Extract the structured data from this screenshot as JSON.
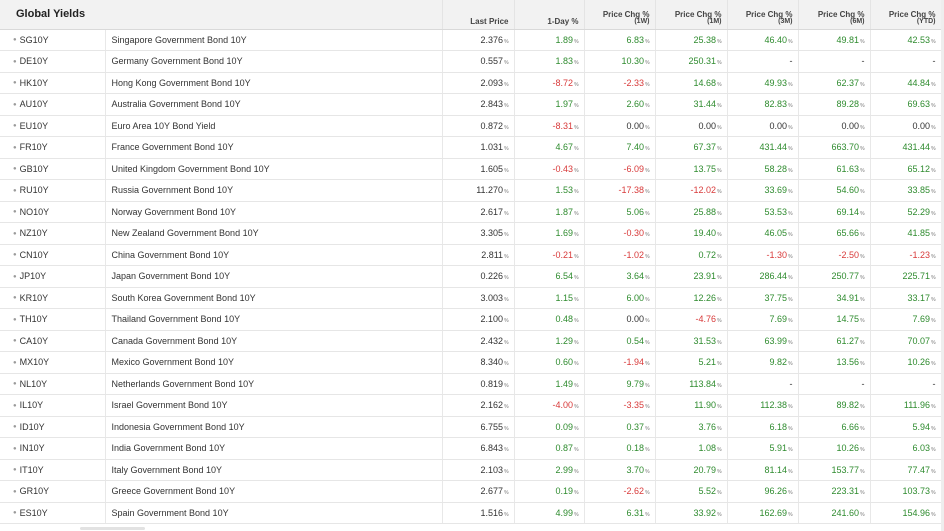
{
  "table": {
    "title": "Global Yields",
    "columns": [
      {
        "label": "Last Price",
        "sub": ""
      },
      {
        "label": "1-Day %",
        "sub": ""
      },
      {
        "label": "Price Chg %",
        "sub": "(1W)"
      },
      {
        "label": "Price Chg %",
        "sub": "(1M)"
      },
      {
        "label": "Price Chg %",
        "sub": "(3M)"
      },
      {
        "label": "Price Chg %",
        "sub": "(6M)"
      },
      {
        "label": "Price Chg %",
        "sub": "(YTD)"
      }
    ],
    "pct_suffix": "%",
    "rows": [
      {
        "symbol": "SG10Y",
        "name": "Singapore Government Bond 10Y",
        "values": [
          "2.376",
          "1.89",
          "6.83",
          "25.38",
          "46.40",
          "49.81",
          "42.53"
        ],
        "signs": [
          "n",
          "p",
          "p",
          "p",
          "p",
          "p",
          "p"
        ]
      },
      {
        "symbol": "DE10Y",
        "name": "Germany Government Bond 10Y",
        "values": [
          "0.557",
          "1.83",
          "10.30",
          "250.31",
          "-",
          "-",
          "-"
        ],
        "signs": [
          "n",
          "p",
          "p",
          "p",
          "n",
          "n",
          "n"
        ]
      },
      {
        "symbol": "HK10Y",
        "name": "Hong Kong Government Bond 10Y",
        "values": [
          "2.093",
          "-8.72",
          "-2.33",
          "14.68",
          "49.93",
          "62.37",
          "44.84"
        ],
        "signs": [
          "n",
          "m",
          "m",
          "p",
          "p",
          "p",
          "p"
        ]
      },
      {
        "symbol": "AU10Y",
        "name": "Australia Government Bond 10Y",
        "values": [
          "2.843",
          "1.97",
          "2.60",
          "31.44",
          "82.83",
          "89.28",
          "69.63"
        ],
        "signs": [
          "n",
          "p",
          "p",
          "p",
          "p",
          "p",
          "p"
        ]
      },
      {
        "symbol": "EU10Y",
        "name": "Euro Area 10Y Bond Yield",
        "values": [
          "0.872",
          "-8.31",
          "0.00",
          "0.00",
          "0.00",
          "0.00",
          "0.00"
        ],
        "signs": [
          "n",
          "m",
          "n",
          "n",
          "n",
          "n",
          "n"
        ]
      },
      {
        "symbol": "FR10Y",
        "name": "France Government Bond 10Y",
        "values": [
          "1.031",
          "4.67",
          "7.40",
          "67.37",
          "431.44",
          "663.70",
          "431.44"
        ],
        "signs": [
          "n",
          "p",
          "p",
          "p",
          "p",
          "p",
          "p"
        ]
      },
      {
        "symbol": "GB10Y",
        "name": "United Kingdom Government Bond 10Y",
        "values": [
          "1.605",
          "-0.43",
          "-6.09",
          "13.75",
          "58.28",
          "61.63",
          "65.12"
        ],
        "signs": [
          "n",
          "m",
          "m",
          "p",
          "p",
          "p",
          "p"
        ]
      },
      {
        "symbol": "RU10Y",
        "name": "Russia Government Bond 10Y",
        "values": [
          "11.270",
          "1.53",
          "-17.38",
          "-12.02",
          "33.69",
          "54.60",
          "33.85"
        ],
        "signs": [
          "n",
          "p",
          "m",
          "m",
          "p",
          "p",
          "p"
        ]
      },
      {
        "symbol": "NO10Y",
        "name": "Norway Government Bond 10Y",
        "values": [
          "2.617",
          "1.87",
          "5.06",
          "25.88",
          "53.53",
          "69.14",
          "52.29"
        ],
        "signs": [
          "n",
          "p",
          "p",
          "p",
          "p",
          "p",
          "p"
        ]
      },
      {
        "symbol": "NZ10Y",
        "name": "New Zealand Government Bond 10Y",
        "values": [
          "3.305",
          "1.69",
          "-0.30",
          "19.40",
          "46.05",
          "65.66",
          "41.85"
        ],
        "signs": [
          "n",
          "p",
          "m",
          "p",
          "p",
          "p",
          "p"
        ]
      },
      {
        "symbol": "CN10Y",
        "name": "China Government Bond 10Y",
        "values": [
          "2.811",
          "-0.21",
          "-1.02",
          "0.72",
          "-1.30",
          "-2.50",
          "-1.23"
        ],
        "signs": [
          "n",
          "m",
          "m",
          "p",
          "m",
          "m",
          "m"
        ]
      },
      {
        "symbol": "JP10Y",
        "name": "Japan Government Bond 10Y",
        "values": [
          "0.226",
          "6.54",
          "3.64",
          "23.91",
          "286.44",
          "250.77",
          "225.71"
        ],
        "signs": [
          "n",
          "p",
          "p",
          "p",
          "p",
          "p",
          "p"
        ]
      },
      {
        "symbol": "KR10Y",
        "name": "South Korea Government Bond 10Y",
        "values": [
          "3.003",
          "1.15",
          "6.00",
          "12.26",
          "37.75",
          "34.91",
          "33.17"
        ],
        "signs": [
          "n",
          "p",
          "p",
          "p",
          "p",
          "p",
          "p"
        ]
      },
      {
        "symbol": "TH10Y",
        "name": "Thailand Government Bond 10Y",
        "values": [
          "2.100",
          "0.48",
          "0.00",
          "-4.76",
          "7.69",
          "14.75",
          "7.69"
        ],
        "signs": [
          "n",
          "p",
          "n",
          "m",
          "p",
          "p",
          "p"
        ]
      },
      {
        "symbol": "CA10Y",
        "name": "Canada Government Bond 10Y",
        "values": [
          "2.432",
          "1.29",
          "0.54",
          "31.53",
          "63.99",
          "61.27",
          "70.07"
        ],
        "signs": [
          "n",
          "p",
          "p",
          "p",
          "p",
          "p",
          "p"
        ]
      },
      {
        "symbol": "MX10Y",
        "name": "Mexico Government Bond 10Y",
        "values": [
          "8.340",
          "0.60",
          "-1.94",
          "5.21",
          "9.82",
          "13.56",
          "10.26"
        ],
        "signs": [
          "n",
          "p",
          "m",
          "p",
          "p",
          "p",
          "p"
        ]
      },
      {
        "symbol": "NL10Y",
        "name": "Netherlands Government Bond 10Y",
        "values": [
          "0.819",
          "1.49",
          "9.79",
          "113.84",
          "-",
          "-",
          "-"
        ],
        "signs": [
          "n",
          "p",
          "p",
          "p",
          "n",
          "n",
          "n"
        ]
      },
      {
        "symbol": "IL10Y",
        "name": "Israel Government Bond 10Y",
        "values": [
          "2.162",
          "-4.00",
          "-3.35",
          "11.90",
          "112.38",
          "89.82",
          "111.96"
        ],
        "signs": [
          "n",
          "m",
          "m",
          "p",
          "p",
          "p",
          "p"
        ]
      },
      {
        "symbol": "ID10Y",
        "name": "Indonesia Government Bond 10Y",
        "values": [
          "6.755",
          "0.09",
          "0.37",
          "3.76",
          "6.18",
          "6.66",
          "5.94"
        ],
        "signs": [
          "n",
          "p",
          "p",
          "p",
          "p",
          "p",
          "p"
        ]
      },
      {
        "symbol": "IN10Y",
        "name": "India Government Bond 10Y",
        "values": [
          "6.843",
          "0.87",
          "0.18",
          "1.08",
          "5.91",
          "10.26",
          "6.03"
        ],
        "signs": [
          "n",
          "p",
          "p",
          "p",
          "p",
          "p",
          "p"
        ]
      },
      {
        "symbol": "IT10Y",
        "name": "Italy Government Bond 10Y",
        "values": [
          "2.103",
          "2.99",
          "3.70",
          "20.79",
          "81.14",
          "153.77",
          "77.47"
        ],
        "signs": [
          "n",
          "p",
          "p",
          "p",
          "p",
          "p",
          "p"
        ]
      },
      {
        "symbol": "GR10Y",
        "name": "Greece Government Bond 10Y",
        "values": [
          "2.677",
          "0.19",
          "-2.62",
          "5.52",
          "96.26",
          "223.31",
          "103.73"
        ],
        "signs": [
          "n",
          "p",
          "m",
          "p",
          "p",
          "p",
          "p"
        ]
      },
      {
        "symbol": "ES10Y",
        "name": "Spain Government Bond 10Y",
        "values": [
          "1.516",
          "4.99",
          "6.31",
          "33.92",
          "162.69",
          "241.60",
          "154.96"
        ],
        "signs": [
          "n",
          "p",
          "p",
          "p",
          "p",
          "p",
          "p"
        ]
      }
    ]
  },
  "colors": {
    "positive": "#2e8b2e",
    "negative": "#d83a3a",
    "neutral": "#333333",
    "header_bg": "#f2f2f2"
  }
}
